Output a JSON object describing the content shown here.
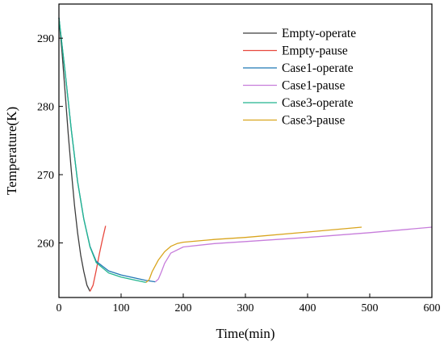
{
  "chart_data": {
    "type": "line",
    "title": "",
    "xlabel": "Time(min)",
    "ylabel": "Temperature(K)",
    "xlim": [
      0,
      600
    ],
    "ylim": [
      252,
      295
    ],
    "xticks": [
      0,
      100,
      200,
      300,
      400,
      500,
      600
    ],
    "yticks": [
      260,
      270,
      280,
      290
    ],
    "grid": false,
    "legend_position": "top-right",
    "series": [
      {
        "name": "Empty-operate",
        "color": "#3c3c3c",
        "x": [
          0,
          5,
          10,
          15,
          20,
          25,
          30,
          35,
          40,
          45,
          50
        ],
        "y": [
          293,
          288,
          282,
          276,
          270.5,
          265.5,
          261.5,
          258.2,
          255.8,
          253.8,
          252.9
        ]
      },
      {
        "name": "Empty-pause",
        "color": "#e8483e",
        "x": [
          50,
          55,
          60,
          65,
          70,
          75
        ],
        "y": [
          252.9,
          253.8,
          256,
          258.4,
          260.5,
          262.5
        ]
      },
      {
        "name": "Case1-operate",
        "color": "#1f77b4",
        "x": [
          0,
          10,
          20,
          30,
          40,
          50,
          60,
          80,
          100,
          120,
          140,
          155
        ],
        "y": [
          293,
          285,
          276.5,
          269,
          263.5,
          259.5,
          257.3,
          255.9,
          255.3,
          254.9,
          254.5,
          254.3
        ]
      },
      {
        "name": "Case1-pause",
        "color": "#c77ddb",
        "x": [
          155,
          160,
          165,
          170,
          180,
          200,
          250,
          300,
          400,
          500,
          600
        ],
        "y": [
          254.3,
          254.7,
          255.8,
          257,
          258.5,
          259.4,
          259.9,
          260.2,
          260.8,
          261.5,
          262.3
        ]
      },
      {
        "name": "Case3-operate",
        "color": "#22b58f",
        "x": [
          0,
          10,
          20,
          30,
          40,
          50,
          60,
          80,
          100,
          120,
          140
        ],
        "y": [
          293,
          285,
          276.5,
          269,
          263.5,
          259.4,
          257.1,
          255.6,
          255,
          254.6,
          254.2
        ]
      },
      {
        "name": "Case3-pause",
        "color": "#d9a51e",
        "x": [
          140,
          145,
          150,
          160,
          170,
          180,
          190,
          200,
          250,
          300,
          400,
          487
        ],
        "y": [
          254.2,
          254.6,
          255.8,
          257.5,
          258.7,
          259.5,
          259.9,
          260.1,
          260.5,
          260.8,
          261.6,
          262.3
        ]
      }
    ]
  }
}
